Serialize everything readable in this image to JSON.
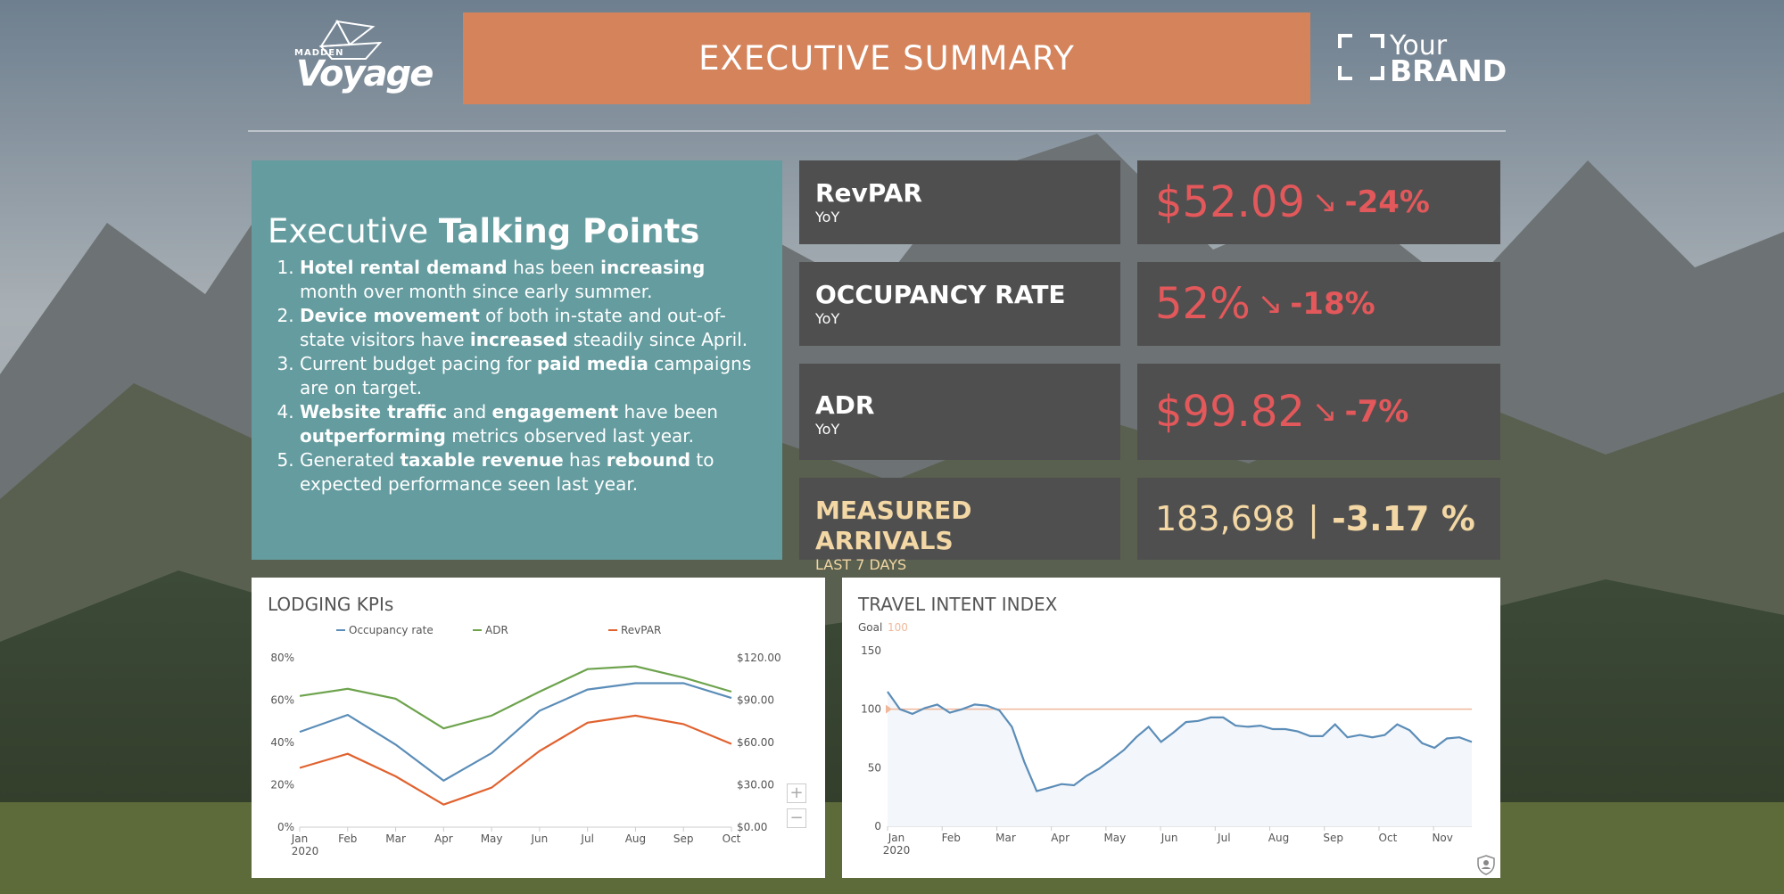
{
  "header": {
    "logo_small": "MADDEN",
    "logo_main": "Voyage",
    "title": "EXECUTIVE SUMMARY",
    "brand_your": "Your",
    "brand_name": "BRAND"
  },
  "talking_points": {
    "title_light": "Executive",
    "title_bold": "Talking Points",
    "items": [
      {
        "parts": [
          {
            "b": "Hotel rental demand"
          },
          {
            "t": " has been "
          },
          {
            "b": "increasing"
          },
          {
            "t": " month over month since early summer."
          }
        ]
      },
      {
        "parts": [
          {
            "b": "Device movement"
          },
          {
            "t": " of both in-state and out-of-state visitors have "
          },
          {
            "b": "increased"
          },
          {
            "t": " steadily since April."
          }
        ]
      },
      {
        "parts": [
          {
            "t": "Current budget pacing for "
          },
          {
            "b": "paid media"
          },
          {
            "t": " campaigns are on target."
          }
        ]
      },
      {
        "parts": [
          {
            "b": "Website traffic"
          },
          {
            "t": " and "
          },
          {
            "b": "engagement"
          },
          {
            "t": " have been "
          },
          {
            "b": "outperforming"
          },
          {
            "t": " metrics observed last year."
          }
        ]
      },
      {
        "parts": [
          {
            "t": "Generated "
          },
          {
            "b": "taxable revenue"
          },
          {
            "t": " has "
          },
          {
            "b": "rebound"
          },
          {
            "t": " to expected performance seen last year."
          }
        ]
      }
    ]
  },
  "kpis": {
    "revpar": {
      "label": "RevPAR",
      "sub": "YoY",
      "value": "$52.09",
      "arrow": "↘",
      "change": "-24%"
    },
    "occupancy": {
      "label": "OCCUPANCY RATE",
      "sub": "YoY",
      "value": "52%",
      "arrow": "↘",
      "change": "-18%"
    },
    "adr": {
      "label": "ADR",
      "sub": "YoY",
      "value": "$99.82",
      "arrow": "↘",
      "change": "-7%"
    },
    "arrivals": {
      "label": "MEASURED ARRIVALS",
      "sub": "LAST 7 DAYS",
      "value": "183,698",
      "sep": "|",
      "change": "-3.17 %"
    }
  },
  "colors": {
    "title_bar": "#d4835b",
    "panel_teal": "#649c9f",
    "kpi_bg": "#4f4f4f",
    "negative": "#e2585b",
    "arrivals": "#f3d7a4",
    "occupancy_line": "#5b8db8",
    "adr_line": "#6da34d",
    "revpar_line": "#e0622f",
    "goal_line": "#f0b89a"
  },
  "icons": {
    "zoom_in": "plus-icon",
    "zoom_out": "minus-icon",
    "shield": "shield-icon"
  },
  "chart_data": [
    {
      "type": "line",
      "title": "LODGING KPIs",
      "categories": [
        "Jan",
        "Feb",
        "Mar",
        "Apr",
        "May",
        "Jun",
        "Jul",
        "Aug",
        "Sep",
        "Oct"
      ],
      "x_sub_label": "2020",
      "left_axis": {
        "ylim": [
          0,
          80
        ],
        "ticks": [
          "0%",
          "20%",
          "40%",
          "60%",
          "80%"
        ]
      },
      "right_axis": {
        "ylim": [
          0,
          120
        ],
        "ticks": [
          "$0.00",
          "$30.00",
          "$60.00",
          "$90.00",
          "$120.00"
        ]
      },
      "legend_position": "top",
      "series": [
        {
          "name": "Occupancy rate",
          "axis": "left",
          "values": [
            45,
            53,
            39,
            22,
            35,
            55,
            65,
            68,
            68,
            61
          ]
        },
        {
          "name": "ADR",
          "axis": "right",
          "values": [
            93,
            98,
            91,
            70,
            79,
            96,
            112,
            114,
            106,
            96
          ]
        },
        {
          "name": "RevPAR",
          "axis": "right",
          "values": [
            42,
            52,
            36,
            16,
            28,
            54,
            74,
            79,
            73,
            59
          ]
        }
      ]
    },
    {
      "type": "area",
      "title": "TRAVEL INTENT INDEX",
      "goal_label": "Goal",
      "goal_value": "100",
      "goal": 100,
      "ylim": [
        0,
        150
      ],
      "y_ticks": [
        "0",
        "50",
        "100",
        "150"
      ],
      "x_ticks": [
        "Jan",
        "Feb",
        "Mar",
        "Apr",
        "May",
        "Jun",
        "Jul",
        "Aug",
        "Sep",
        "Oct",
        "Nov"
      ],
      "x_sub_label": "2020",
      "x_range": [
        0,
        10.7
      ],
      "values": [
        115,
        100,
        96,
        101,
        104,
        97,
        100,
        104,
        103,
        99,
        85,
        55,
        30,
        33,
        36,
        35,
        43,
        49,
        57,
        65,
        76,
        85,
        72,
        80,
        89,
        90,
        93,
        93,
        86,
        85,
        86,
        83,
        83,
        81,
        77,
        77,
        87,
        76,
        78,
        76,
        78,
        87,
        82,
        71,
        67,
        75,
        76,
        72
      ]
    }
  ]
}
